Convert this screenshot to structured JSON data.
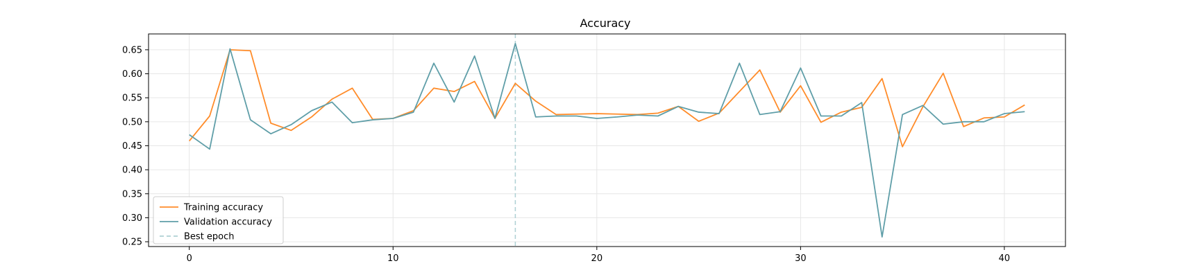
{
  "chart_data": {
    "type": "line",
    "title": "Accuracy",
    "xlabel": "",
    "ylabel": "",
    "xlim": [
      -2,
      43
    ],
    "ylim": [
      0.24,
      0.683
    ],
    "x_ticks": [
      "0",
      "10",
      "20",
      "30",
      "40"
    ],
    "y_ticks": [
      "0.25",
      "0.30",
      "0.35",
      "0.40",
      "0.45",
      "0.50",
      "0.55",
      "0.60",
      "0.65"
    ],
    "grid": true,
    "legend": {
      "placement": "bottom-left"
    },
    "x": [
      0,
      1,
      2,
      3,
      4,
      5,
      6,
      7,
      8,
      9,
      10,
      11,
      12,
      13,
      14,
      15,
      16,
      17,
      18,
      19,
      20,
      21,
      22,
      23,
      24,
      25,
      26,
      27,
      28,
      29,
      30,
      31,
      32,
      33,
      34,
      35,
      36,
      37,
      38,
      39,
      40,
      41
    ],
    "series": [
      {
        "name": "Training accuracy",
        "color": "#ff8c2a",
        "values": [
          0.46,
          0.512,
          0.65,
          0.648,
          0.497,
          0.482,
          0.51,
          0.547,
          0.57,
          0.505,
          0.507,
          0.523,
          0.57,
          0.563,
          0.584,
          0.507,
          0.58,
          0.543,
          0.515,
          0.516,
          0.517,
          0.516,
          0.515,
          0.518,
          0.532,
          0.501,
          0.518,
          0.563,
          0.608,
          0.52,
          0.575,
          0.499,
          0.52,
          0.53,
          0.59,
          0.448,
          0.531,
          0.601,
          0.49,
          0.508,
          0.51,
          0.535
        ]
      },
      {
        "name": "Validation accuracy",
        "color": "#5f9ea8",
        "values": [
          0.473,
          0.443,
          0.652,
          0.504,
          0.475,
          0.494,
          0.523,
          0.541,
          0.498,
          0.504,
          0.507,
          0.52,
          0.622,
          0.541,
          0.637,
          0.507,
          0.663,
          0.51,
          0.512,
          0.512,
          0.507,
          0.51,
          0.514,
          0.512,
          0.532,
          0.52,
          0.517,
          0.622,
          0.515,
          0.521,
          0.612,
          0.512,
          0.512,
          0.54,
          0.26,
          0.515,
          0.534,
          0.495,
          0.5,
          0.5,
          0.517,
          0.521
        ]
      }
    ],
    "reference_line": {
      "name": "Best epoch",
      "x": 16,
      "color": "#aed0d4"
    }
  }
}
